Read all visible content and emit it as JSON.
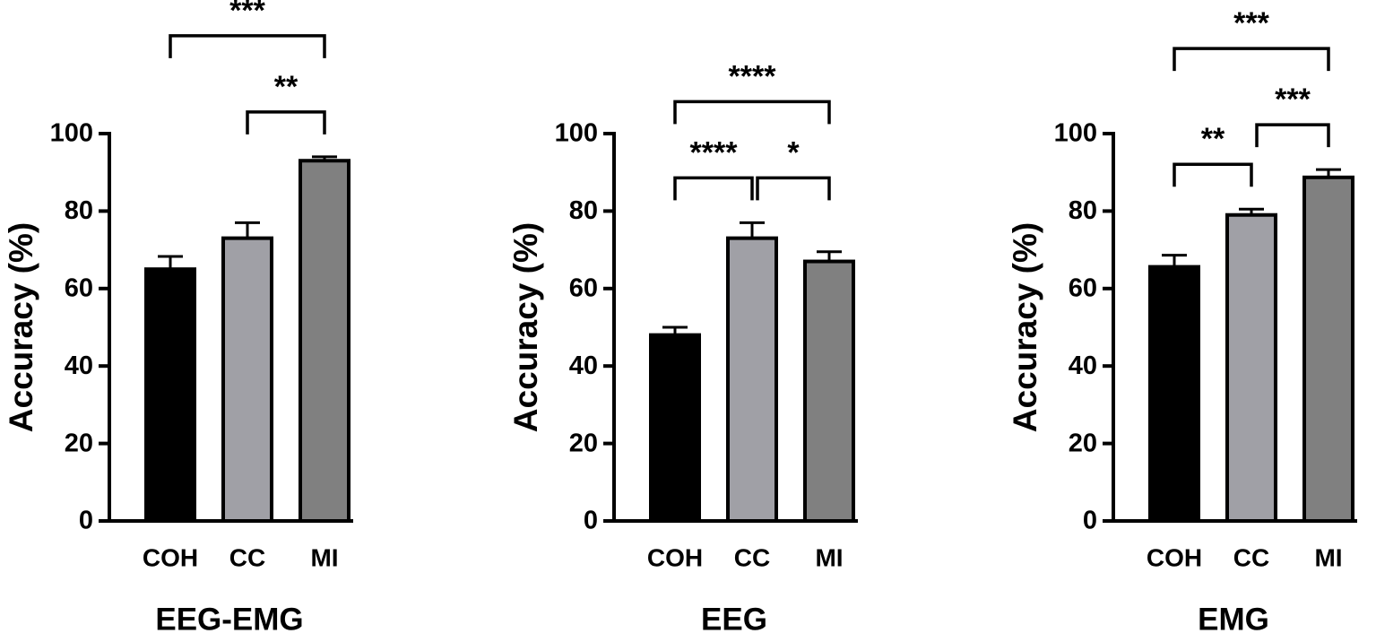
{
  "chart_data": [
    {
      "type": "bar",
      "title": "EEG-EMG",
      "ylabel": "Accuracy (%)",
      "categories": [
        "COH",
        "CC",
        "MI"
      ],
      "values": [
        65,
        73,
        93
      ],
      "errors": [
        3.3,
        4,
        1
      ],
      "colors": [
        "#000000",
        "#a0a0a6",
        "#808080"
      ],
      "ylim": [
        0,
        100
      ],
      "yticks": [
        0,
        20,
        40,
        60,
        80,
        100
      ],
      "comparisons": [
        {
          "groups": [
            "CC",
            "MI"
          ],
          "label": "**"
        },
        {
          "groups": [
            "COH",
            "MI"
          ],
          "label": "***"
        }
      ]
    },
    {
      "type": "bar",
      "title": "EEG",
      "ylabel": "Accuracy (%)",
      "categories": [
        "COH",
        "CC",
        "MI"
      ],
      "values": [
        48,
        73,
        67
      ],
      "errors": [
        2,
        4,
        2.5
      ],
      "colors": [
        "#000000",
        "#a0a0a6",
        "#808080"
      ],
      "ylim": [
        0,
        100
      ],
      "yticks": [
        0,
        20,
        40,
        60,
        80,
        100
      ],
      "comparisons": [
        {
          "groups": [
            "COH",
            "CC"
          ],
          "label": "****"
        },
        {
          "groups": [
            "CC",
            "MI"
          ],
          "label": "*"
        },
        {
          "groups": [
            "COH",
            "MI"
          ],
          "label": "****"
        }
      ]
    },
    {
      "type": "bar",
      "title": "EMG",
      "ylabel": "Accuracy (%)",
      "categories": [
        "COH",
        "CC",
        "MI"
      ],
      "values": [
        65.6,
        79,
        88.7
      ],
      "errors": [
        3,
        1.5,
        2
      ],
      "colors": [
        "#000000",
        "#a0a0a6",
        "#808080"
      ],
      "ylim": [
        0,
        100
      ],
      "yticks": [
        0,
        20,
        40,
        60,
        80,
        100
      ],
      "comparisons": [
        {
          "groups": [
            "COH",
            "CC"
          ],
          "label": "**"
        },
        {
          "groups": [
            "CC",
            "MI"
          ],
          "label": "***"
        },
        {
          "groups": [
            "COH",
            "MI"
          ],
          "label": "***"
        }
      ]
    }
  ]
}
